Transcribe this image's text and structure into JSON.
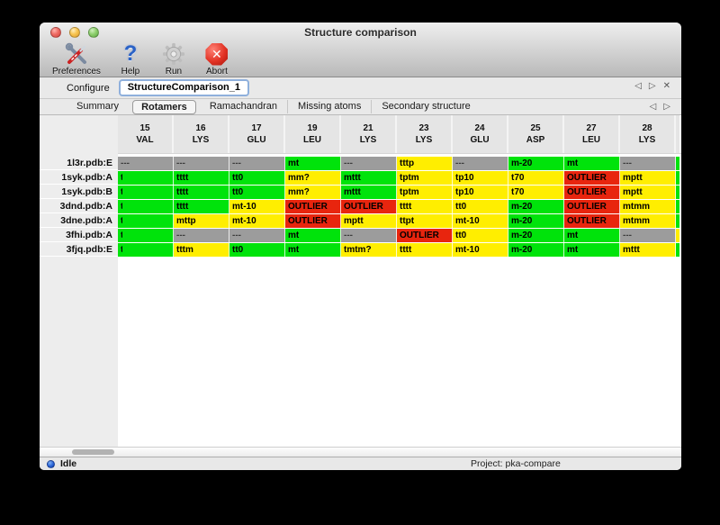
{
  "window": {
    "title": "Structure comparison"
  },
  "toolbar": {
    "items": [
      {
        "label": "Preferences",
        "icon": "tools-icon"
      },
      {
        "label": "Help",
        "icon": "question-icon",
        "glyph": "?"
      },
      {
        "label": "Run",
        "icon": "gear-icon"
      },
      {
        "label": "Abort",
        "icon": "stop-x-icon",
        "glyph": "✕"
      }
    ]
  },
  "configure": {
    "label": "Configure",
    "value": "StructureComparison_1",
    "nav": {
      "back": "◁",
      "forward": "▷",
      "close": "✕"
    }
  },
  "tabs": {
    "items": [
      "Summary",
      "Rotamers",
      "Ramachandran",
      "Missing atoms",
      "Secondary structure"
    ],
    "selected": "Rotamers",
    "nav": {
      "back": "◁",
      "forward": "▷"
    }
  },
  "colors": {
    "green": "#00e30b",
    "yellow": "#ffee00",
    "red": "#e8250e",
    "gray": "#9c9c9c"
  },
  "table": {
    "columns": [
      {
        "num": "15",
        "res": "VAL"
      },
      {
        "num": "16",
        "res": "LYS"
      },
      {
        "num": "17",
        "res": "GLU"
      },
      {
        "num": "19",
        "res": "LEU"
      },
      {
        "num": "21",
        "res": "LYS"
      },
      {
        "num": "23",
        "res": "LYS"
      },
      {
        "num": "24",
        "res": "GLU"
      },
      {
        "num": "25",
        "res": "ASP"
      },
      {
        "num": "27",
        "res": "LEU"
      },
      {
        "num": "28",
        "res": "LYS"
      }
    ],
    "rows": [
      {
        "label": "1l3r.pdb:E",
        "edge": "green",
        "cells": [
          {
            "t": "---",
            "c": "gray"
          },
          {
            "t": "---",
            "c": "gray"
          },
          {
            "t": "---",
            "c": "gray"
          },
          {
            "t": "mt",
            "c": "green"
          },
          {
            "t": "---",
            "c": "gray"
          },
          {
            "t": "tttp",
            "c": "yellow"
          },
          {
            "t": "---",
            "c": "gray"
          },
          {
            "t": "m-20",
            "c": "green"
          },
          {
            "t": "mt",
            "c": "green"
          },
          {
            "t": "---",
            "c": "gray"
          }
        ]
      },
      {
        "label": "1syk.pdb:A",
        "edge": "green",
        "cells": [
          {
            "t": "t",
            "c": "green",
            "clip": true
          },
          {
            "t": "tttt",
            "c": "green"
          },
          {
            "t": "tt0",
            "c": "green"
          },
          {
            "t": "mm?",
            "c": "yellow"
          },
          {
            "t": "mttt",
            "c": "green"
          },
          {
            "t": "tptm",
            "c": "yellow"
          },
          {
            "t": "tp10",
            "c": "yellow"
          },
          {
            "t": "t70",
            "c": "yellow"
          },
          {
            "t": "OUTLIER",
            "c": "red"
          },
          {
            "t": "mptt",
            "c": "yellow"
          }
        ]
      },
      {
        "label": "1syk.pdb:B",
        "edge": "green",
        "cells": [
          {
            "t": "t",
            "c": "green",
            "clip": true
          },
          {
            "t": "tttt",
            "c": "green"
          },
          {
            "t": "tt0",
            "c": "green"
          },
          {
            "t": "mm?",
            "c": "yellow"
          },
          {
            "t": "mttt",
            "c": "green"
          },
          {
            "t": "tptm",
            "c": "yellow"
          },
          {
            "t": "tp10",
            "c": "yellow"
          },
          {
            "t": "t70",
            "c": "yellow"
          },
          {
            "t": "OUTLIER",
            "c": "red"
          },
          {
            "t": "mptt",
            "c": "yellow"
          }
        ]
      },
      {
        "label": "3dnd.pdb:A",
        "edge": "green",
        "cells": [
          {
            "t": "t",
            "c": "green",
            "clip": true
          },
          {
            "t": "tttt",
            "c": "green"
          },
          {
            "t": "mt-10",
            "c": "yellow"
          },
          {
            "t": "OUTLIER",
            "c": "red"
          },
          {
            "t": "OUTLIER",
            "c": "red"
          },
          {
            "t": "tttt",
            "c": "yellow"
          },
          {
            "t": "tt0",
            "c": "yellow"
          },
          {
            "t": "m-20",
            "c": "green"
          },
          {
            "t": "OUTLIER",
            "c": "red"
          },
          {
            "t": "mtmm",
            "c": "yellow"
          }
        ]
      },
      {
        "label": "3dne.pdb:A",
        "edge": "green",
        "cells": [
          {
            "t": "t",
            "c": "green",
            "clip": true
          },
          {
            "t": "mttp",
            "c": "yellow"
          },
          {
            "t": "mt-10",
            "c": "yellow"
          },
          {
            "t": "OUTLIER",
            "c": "red"
          },
          {
            "t": "mptt",
            "c": "yellow"
          },
          {
            "t": "ttpt",
            "c": "yellow"
          },
          {
            "t": "mt-10",
            "c": "yellow"
          },
          {
            "t": "m-20",
            "c": "green"
          },
          {
            "t": "OUTLIER",
            "c": "red"
          },
          {
            "t": "mtmm",
            "c": "yellow"
          }
        ]
      },
      {
        "label": "3fhi.pdb:A",
        "edge": "yellow",
        "cells": [
          {
            "t": "t",
            "c": "green",
            "clip": true
          },
          {
            "t": "---",
            "c": "gray"
          },
          {
            "t": "---",
            "c": "gray"
          },
          {
            "t": "mt",
            "c": "green"
          },
          {
            "t": "---",
            "c": "gray"
          },
          {
            "t": "OUTLIER",
            "c": "red"
          },
          {
            "t": "tt0",
            "c": "yellow"
          },
          {
            "t": "m-20",
            "c": "green"
          },
          {
            "t": "mt",
            "c": "green"
          },
          {
            "t": "---",
            "c": "gray"
          }
        ]
      },
      {
        "label": "3fjq.pdb:E",
        "edge": "green",
        "cells": [
          {
            "t": "t",
            "c": "green",
            "clip": true
          },
          {
            "t": "tttm",
            "c": "yellow"
          },
          {
            "t": "tt0",
            "c": "green"
          },
          {
            "t": "mt",
            "c": "green"
          },
          {
            "t": "tmtm?",
            "c": "yellow"
          },
          {
            "t": "tttt",
            "c": "yellow"
          },
          {
            "t": "mt-10",
            "c": "yellow"
          },
          {
            "t": "m-20",
            "c": "green"
          },
          {
            "t": "mt",
            "c": "green"
          },
          {
            "t": "mttt",
            "c": "yellow"
          }
        ]
      }
    ]
  },
  "statusbar": {
    "status": "Idle",
    "project": "Project: pka-compare"
  }
}
